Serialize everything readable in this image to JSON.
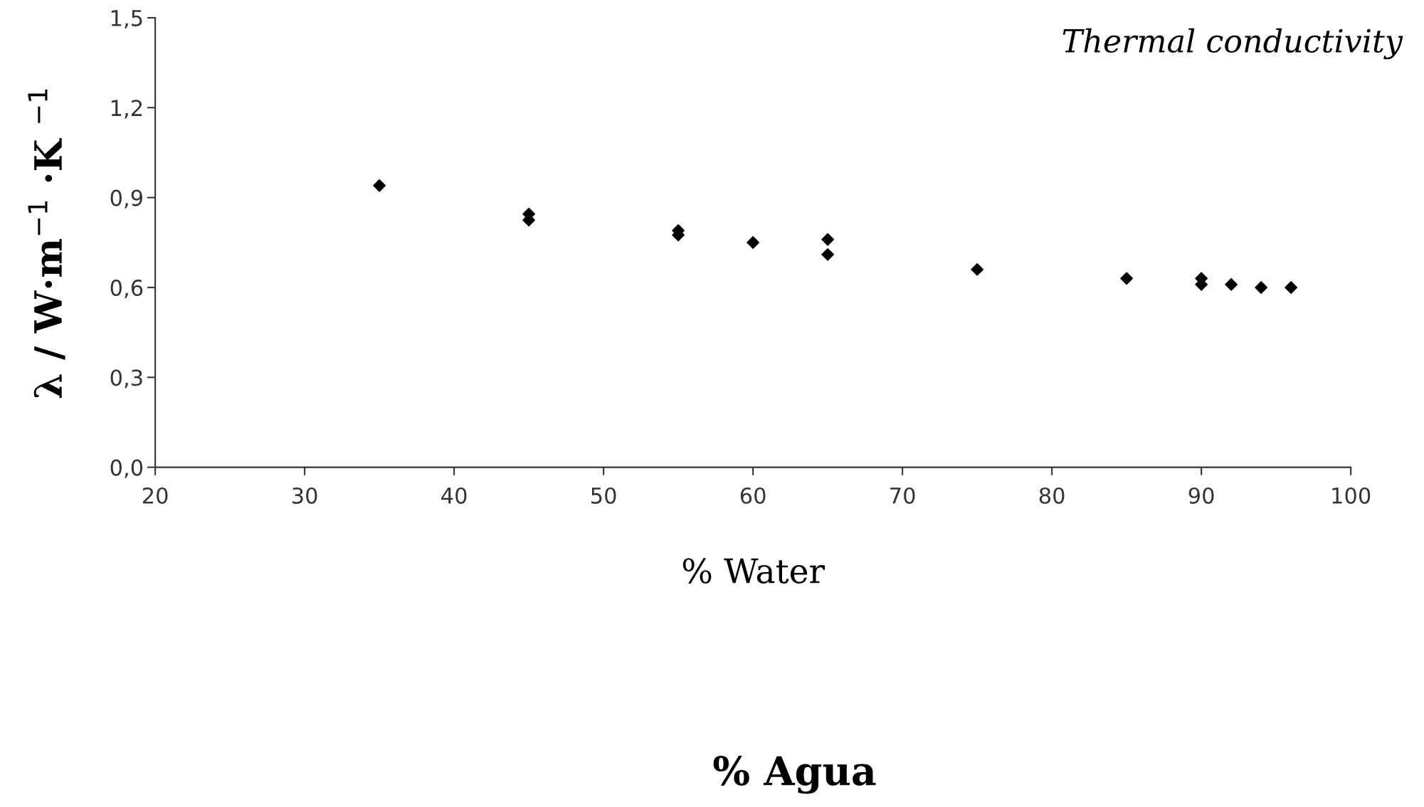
{
  "chart_data": {
    "type": "scatter",
    "title": "Thermal conductivity",
    "xlabel": "% Water",
    "ylabel": "λ / W·m$^{−1}$ ·K $^{−1}$",
    "annotations": [
      "% Agua"
    ],
    "x": [
      35,
      45,
      45,
      55,
      55,
      60,
      65,
      65,
      75,
      85,
      90,
      90,
      92,
      94,
      96
    ],
    "values": [
      0.94,
      0.845,
      0.825,
      0.79,
      0.775,
      0.75,
      0.76,
      0.71,
      0.66,
      0.63,
      0.63,
      0.61,
      0.61,
      0.6,
      0.6
    ],
    "color": "#000000",
    "marker": "diamond",
    "grid": false,
    "legend": false,
    "xlim": [
      20,
      100
    ],
    "xticks": [
      20,
      30,
      40,
      50,
      60,
      70,
      80,
      90,
      100
    ],
    "ylim": [
      0,
      1.5
    ],
    "yticks": [
      {
        "value": 0,
        "label": "0,0"
      },
      {
        "value": 0.3,
        "label": "0,3"
      },
      {
        "value": 0.6,
        "label": "0,6"
      },
      {
        "value": 0.9,
        "label": "0,9"
      },
      {
        "value": 1.2,
        "label": "1,2"
      },
      {
        "value": 1.5,
        "label": "1,5"
      }
    ]
  }
}
